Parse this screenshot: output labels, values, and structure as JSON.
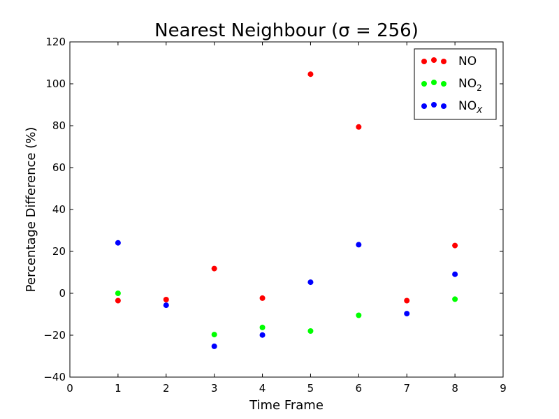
{
  "chart_data": {
    "type": "scatter",
    "title": "Nearest Neighbour (σ = 256)",
    "xlabel": "Time Frame",
    "ylabel": "Percentage Difference (%)",
    "xlim": [
      0,
      9
    ],
    "ylim": [
      -40,
      120
    ],
    "x_ticks": [
      0,
      1,
      2,
      3,
      4,
      5,
      6,
      7,
      8,
      9
    ],
    "y_ticks": [
      -40,
      -20,
      0,
      20,
      40,
      60,
      80,
      100,
      120
    ],
    "grid": false,
    "legend_position": "top-right",
    "series": [
      {
        "name": "NO",
        "color": "#ff0000",
        "x": [
          1,
          2,
          3,
          4,
          5,
          6,
          7,
          8
        ],
        "y": [
          -3.5,
          -3,
          11.8,
          -2.3,
          104.6,
          79.4,
          -3.5,
          22.8
        ]
      },
      {
        "name": "NO2",
        "color": "#00ff00",
        "x": [
          1,
          3,
          4,
          5,
          6,
          8
        ],
        "y": [
          0,
          -19.7,
          -16.3,
          -18,
          -10.5,
          -2.8
        ]
      },
      {
        "name": "NOX",
        "color": "#0000ff",
        "x": [
          1,
          2,
          3,
          4,
          5,
          6,
          7,
          8
        ],
        "y": [
          24.1,
          -5.7,
          -25.3,
          -19.9,
          5.3,
          23.2,
          -9.7,
          9.1
        ]
      }
    ]
  }
}
